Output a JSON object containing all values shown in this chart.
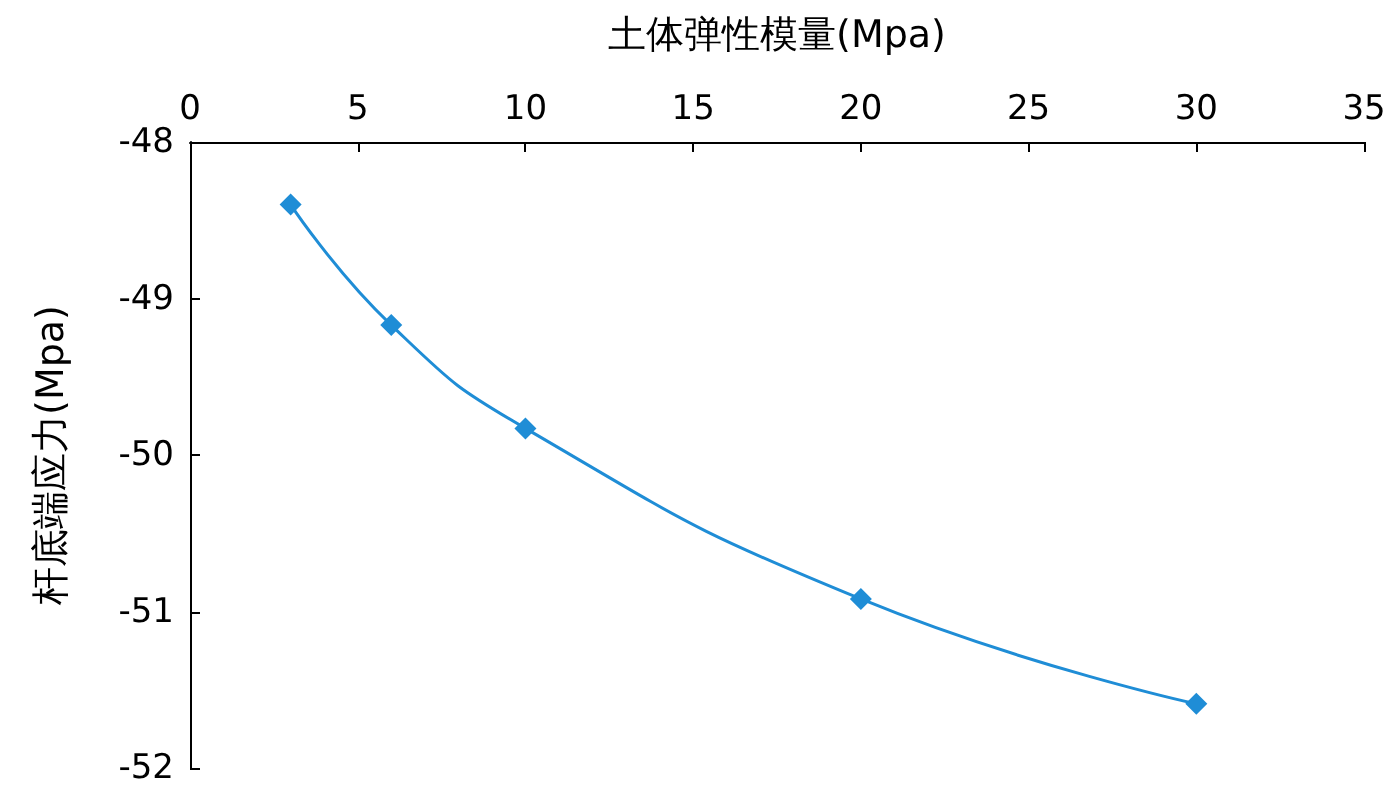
{
  "chart_data": {
    "type": "line",
    "xlabel": "土体弹性模量(Mpa)",
    "ylabel": "杆底端应力(Mpa)",
    "x": [
      3,
      6,
      10,
      20,
      30
    ],
    "series": [
      {
        "color": "#1f8dd6",
        "values": [
          -48.4,
          -49.17,
          -49.83,
          -50.92,
          -51.59
        ]
      }
    ],
    "xlim": [
      0,
      35
    ],
    "xticks": [
      0,
      5,
      10,
      15,
      20,
      25,
      30,
      35
    ],
    "ylim": [
      -52,
      -48
    ],
    "yticks": [
      -52,
      -51,
      -50,
      -49,
      -48
    ],
    "grid": false,
    "marker": "diamond",
    "line_style": "solid"
  }
}
